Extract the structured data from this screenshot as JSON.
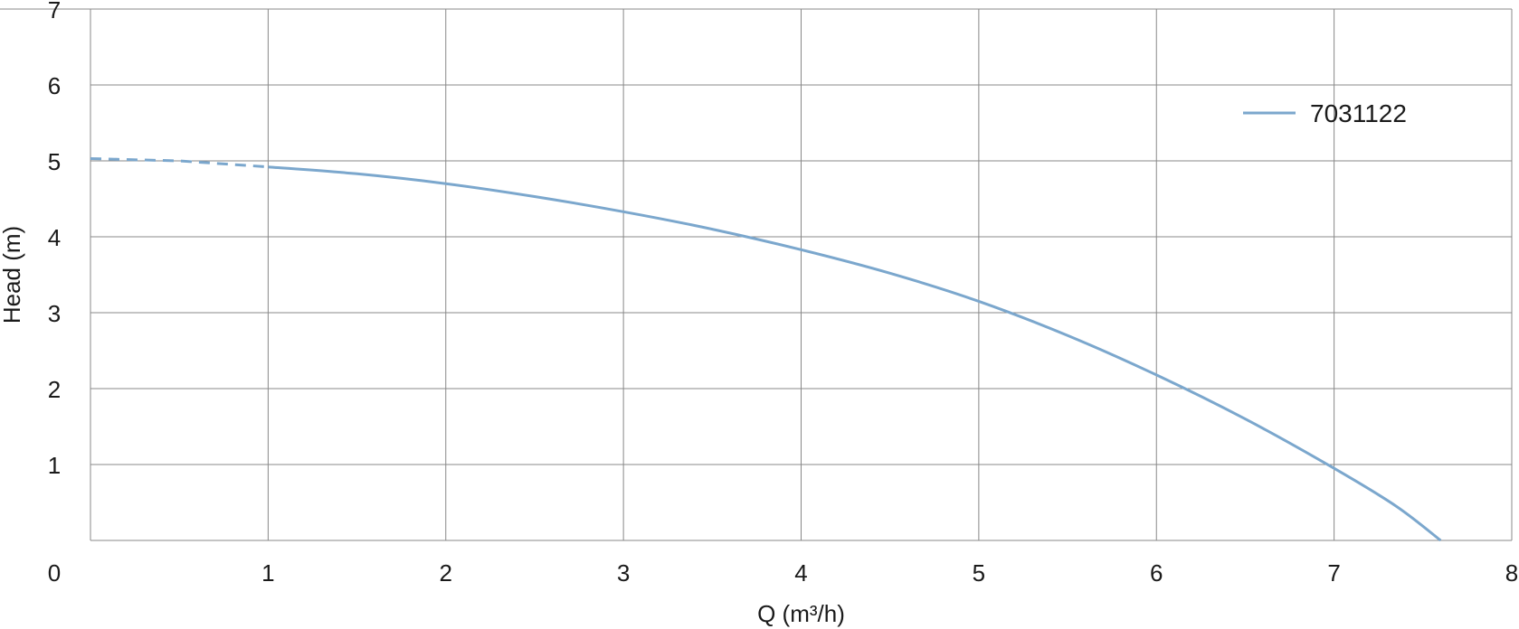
{
  "chart_data": {
    "type": "line",
    "xlabel": "Q (m³/h)",
    "ylabel": "Head (m)",
    "xlim": [
      0,
      8
    ],
    "ylim": [
      0,
      7
    ],
    "x_ticks": [
      "0",
      "1",
      "2",
      "3",
      "4",
      "5",
      "6",
      "7",
      "8"
    ],
    "y_ticks": [
      "0",
      "1",
      "2",
      "3",
      "4",
      "5",
      "6",
      "7"
    ],
    "grid": true,
    "legend_position": "top-right",
    "series": [
      {
        "name": "7031122",
        "color": "#7ba7cd",
        "extrapolated": {
          "x": [
            0,
            0.5,
            1.0
          ],
          "y": [
            5.03,
            5.0,
            4.92
          ]
        },
        "measured": {
          "x": [
            1.0,
            1.5,
            2.0,
            2.5,
            3.0,
            3.5,
            4.0,
            4.5,
            5.0,
            5.5,
            6.0,
            6.5,
            7.0,
            7.35,
            7.6
          ],
          "y": [
            4.92,
            4.83,
            4.7,
            4.53,
            4.33,
            4.1,
            3.83,
            3.52,
            3.15,
            2.7,
            2.18,
            1.6,
            0.95,
            0.45,
            0.0
          ]
        }
      }
    ]
  }
}
